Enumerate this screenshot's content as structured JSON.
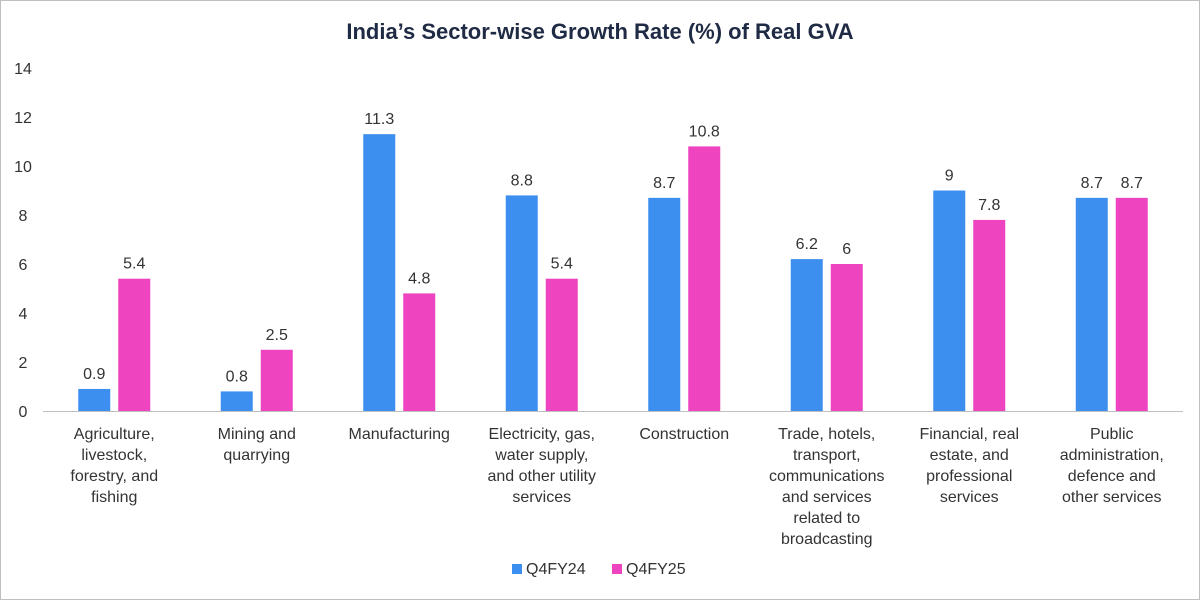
{
  "chart_data": {
    "type": "bar",
    "title": "India’s Sector-wise Growth Rate (%) of Real GVA",
    "xlabel": "",
    "ylabel": "",
    "ylim": [
      0,
      14
    ],
    "yticks": [
      0,
      2,
      4,
      6,
      8,
      10,
      12,
      14
    ],
    "grid": false,
    "legend_position": "bottom",
    "categories": [
      [
        "Agriculture,",
        "livestock,",
        "forestry, and",
        "fishing"
      ],
      [
        "Mining and",
        "quarrying"
      ],
      [
        "Manufacturing"
      ],
      [
        "Electricity, gas,",
        "water supply,",
        "and other utility",
        "services"
      ],
      [
        "Construction"
      ],
      [
        "Trade, hotels,",
        "transport,",
        "communications",
        "and services",
        "related to",
        "broadcasting"
      ],
      [
        "Financial, real",
        "estate, and",
        "professional",
        "services"
      ],
      [
        "Public",
        "administration,",
        "defence and",
        "other services"
      ]
    ],
    "series": [
      {
        "name": "Q4FY24",
        "color": "#3d8fef",
        "values": [
          0.9,
          0.8,
          11.3,
          8.8,
          8.7,
          6.2,
          9,
          8.7
        ]
      },
      {
        "name": "Q4FY25",
        "color": "#ee44c0",
        "values": [
          5.4,
          2.5,
          4.8,
          5.4,
          10.8,
          6,
          7.8,
          8.7
        ]
      }
    ]
  }
}
